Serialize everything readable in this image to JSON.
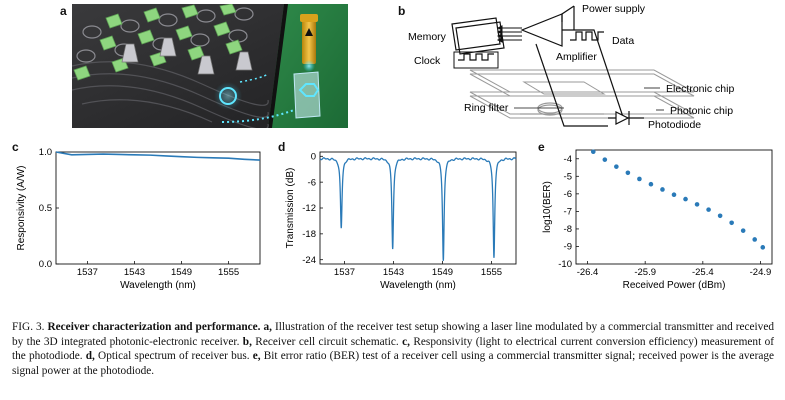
{
  "panels": {
    "a": {
      "letter": "a"
    },
    "b": {
      "letter": "b",
      "labels": {
        "power_supply": "Power supply",
        "memory": "Memory",
        "data": "Data",
        "amplifier": "Amplifier",
        "clock": "Clock",
        "electronic_chip": "Electronic chip",
        "ring_filter": "Ring filter",
        "photonic_chip": "Photonic chip",
        "photodiode": "Photodiode"
      }
    },
    "c": {
      "letter": "c"
    },
    "d": {
      "letter": "d"
    },
    "e": {
      "letter": "e"
    }
  },
  "chart_data": [
    {
      "id": "c",
      "type": "line",
      "xlabel": "Wavelength (nm)",
      "ylabel": "Responsivity (A/W)",
      "xlim": [
        1533,
        1559
      ],
      "ylim": [
        0,
        1.0
      ],
      "xticks": [
        "1537",
        "1543",
        "1549",
        "1555"
      ],
      "yticks": [
        "0.0",
        "0.5",
        "1.0"
      ],
      "color": "#2a7ab8",
      "x": [
        1533,
        1535,
        1537,
        1539,
        1541,
        1543,
        1545,
        1547,
        1549,
        1551,
        1553,
        1555,
        1557,
        1559
      ],
      "y": [
        1.0,
        0.975,
        0.978,
        0.982,
        0.978,
        0.975,
        0.972,
        0.965,
        0.958,
        0.952,
        0.948,
        0.945,
        0.935,
        0.928
      ]
    },
    {
      "id": "d",
      "type": "line",
      "xlabel": "Wavelength (nm)",
      "ylabel": "Transmission (dB)",
      "xlim": [
        1534,
        1558
      ],
      "ylim": [
        -25,
        1
      ],
      "xticks": [
        "1537",
        "1543",
        "1549",
        "1555"
      ],
      "yticks": [
        "0",
        "-6",
        "-12",
        "-18",
        "-24"
      ],
      "color": "#2a7ab8",
      "baseline": -0.5,
      "dips": [
        {
          "center": 1536.6,
          "depth": -16.8
        },
        {
          "center": 1542.9,
          "depth": -21.5
        },
        {
          "center": 1549.1,
          "depth": -24.3
        },
        {
          "center": 1555.3,
          "depth": -23.5
        }
      ]
    },
    {
      "id": "e",
      "type": "scatter",
      "xlabel": "Received Power (dBm)",
      "ylabel": "log10(BER)",
      "xlim": [
        -26.5,
        -24.8
      ],
      "ylim": [
        -10,
        -3.5
      ],
      "xticks": [
        "-26.4",
        "-25.9",
        "-25.4",
        "-24.9"
      ],
      "yticks": [
        "-4",
        "-5",
        "-6",
        "-7",
        "-8",
        "-9",
        "-10"
      ],
      "color": "#2a7ab8",
      "x": [
        -26.35,
        -26.25,
        -26.15,
        -26.05,
        -25.95,
        -25.85,
        -25.75,
        -25.65,
        -25.55,
        -25.45,
        -25.35,
        -25.25,
        -25.15,
        -25.05,
        -24.95,
        -24.88
      ],
      "y": [
        -3.6,
        -4.05,
        -4.45,
        -4.8,
        -5.15,
        -5.45,
        -5.75,
        -6.05,
        -6.3,
        -6.6,
        -6.9,
        -7.25,
        -7.65,
        -8.1,
        -8.6,
        -9.05
      ]
    }
  ],
  "caption": {
    "fig": "FIG. 3.",
    "title": "Receiver characterization and performance.",
    "parts": [
      {
        "label": "a,",
        "text": "Illustration of the receiver test setup showing a laser line modulated by a commercial transmitter and received by the 3D integrated photonic-electronic receiver."
      },
      {
        "label": "b,",
        "text": "Receiver cell circuit schematic."
      },
      {
        "label": "c,",
        "text": "Responsivity (light to electrical current conversion efficiency) measurement of the photodiode."
      },
      {
        "label": "d,",
        "text": "Optical spectrum of receiver bus."
      },
      {
        "label": "e,",
        "text": "Bit error ratio (BER) test of a receiver cell using a commercial transmitter signal; received power is the average signal power at the photodiode."
      }
    ]
  }
}
